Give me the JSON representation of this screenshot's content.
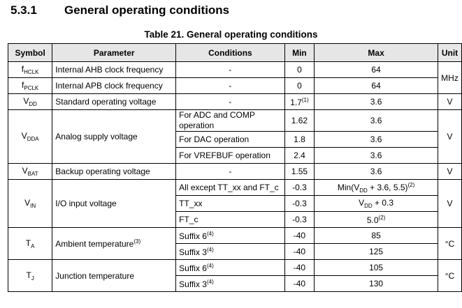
{
  "section": {
    "number": "5.3.1",
    "title": "General operating conditions"
  },
  "table_caption": "Table 21. General operating conditions",
  "headers": {
    "symbol": "Symbol",
    "parameter": "Parameter",
    "conditions": "Conditions",
    "min": "Min",
    "max": "Max",
    "unit": "Unit"
  },
  "rows": {
    "fhclk": {
      "sym": "f",
      "sub": "HCLK",
      "param": "Internal AHB clock frequency",
      "cond": "-",
      "min": "0",
      "max": "64"
    },
    "fpclk": {
      "sym": "f",
      "sub": "PCLK",
      "param": "Internal APB clock frequency",
      "cond": "-",
      "min": "0",
      "max": "64"
    },
    "freq_unit": "MHz",
    "vdd": {
      "sym": "V",
      "sub": "DD",
      "param": "Standard operating voltage",
      "cond": "-",
      "min": "1.7",
      "min_note": "(1)",
      "max": "3.6",
      "unit": "V"
    },
    "vdda": {
      "sym": "V",
      "sub": "DDA",
      "param": "Analog supply voltage",
      "unit": "V",
      "c1": "For ADC and COMP operation",
      "min1": "1.62",
      "max1": "3.6",
      "c2": "For DAC operation",
      "min2": "1.8",
      "max2": "3.6",
      "c3": "For VREFBUF operation",
      "min3": "2.4",
      "max3": "3.6"
    },
    "vbat": {
      "sym": "V",
      "sub": "BAT",
      "param": "Backup operating voltage",
      "cond": "-",
      "min": "1.55",
      "max": "3.6",
      "unit": "V"
    },
    "vin": {
      "sym": "V",
      "sub": "IN",
      "param": "I/O input voltage",
      "unit": "V",
      "c1": "All except TT_xx and FT_c",
      "min1": "-0.3",
      "max1_a": "Min(V",
      "max1_sub": "DD",
      "max1_b": " + 3.6, 5.5)",
      "max1_note": "(2)",
      "c2": "TT_xx",
      "min2": "-0.3",
      "max2_a": "V",
      "max2_sub": "DD",
      "max2_b": " + 0.3",
      "c3": "FT_c",
      "min3": "-0.3",
      "max3": "5.0",
      "max3_note": "(2)"
    },
    "ta": {
      "sym": "T",
      "sub": "A",
      "param": "Ambient temperature",
      "param_note": "(3)",
      "unit": "°C",
      "c1": "Suffix 6",
      "c1_note": "(4)",
      "min1": "-40",
      "max1": "85",
      "c2": "Suffix 3",
      "c2_note": "(4)",
      "min2": "-40",
      "max2": "125"
    },
    "tj": {
      "sym": "T",
      "sub": "J",
      "param": "Junction temperature",
      "unit": "°C",
      "c1": "Suffix 6",
      "c1_note": "(4)",
      "min1": "-40",
      "max1": "105",
      "c2": "Suffix 3",
      "c2_note": "(4)",
      "min2": "-40",
      "max2": "130"
    }
  }
}
